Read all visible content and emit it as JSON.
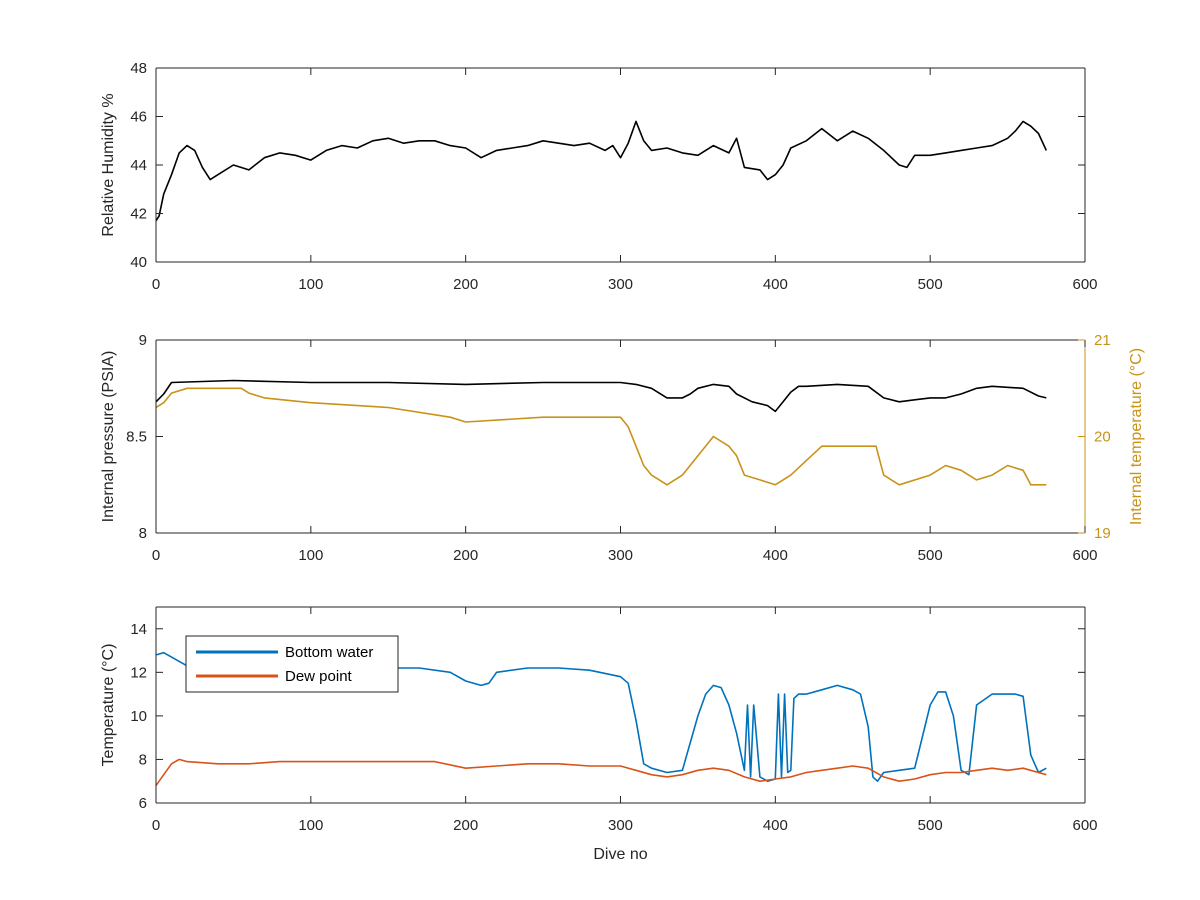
{
  "colors": {
    "axis": "#262626",
    "black_series": "#000000",
    "bottom_water": "#0072BD",
    "dew_point": "#D95319",
    "internal_temperature": "#C89318"
  },
  "chart_data": [
    {
      "type": "line",
      "xlabel": "",
      "ylabel": "Relative Humidity %",
      "xlim": [
        0,
        600
      ],
      "ylim": [
        40,
        48
      ],
      "x_ticks": [
        "0",
        "100",
        "200",
        "300",
        "400",
        "500",
        "600"
      ],
      "y_ticks": [
        "40",
        "42",
        "44",
        "46",
        "48"
      ],
      "grid": false,
      "series": [
        {
          "color": "#000000",
          "x": [
            0,
            2,
            5,
            10,
            15,
            20,
            25,
            30,
            35,
            40,
            50,
            60,
            70,
            80,
            90,
            100,
            110,
            120,
            130,
            140,
            150,
            160,
            170,
            180,
            190,
            200,
            210,
            220,
            230,
            240,
            250,
            260,
            270,
            280,
            290,
            295,
            300,
            305,
            310,
            315,
            320,
            330,
            340,
            350,
            360,
            370,
            375,
            380,
            390,
            395,
            400,
            405,
            410,
            420,
            430,
            440,
            450,
            460,
            470,
            480,
            485,
            490,
            500,
            510,
            520,
            530,
            540,
            550,
            555,
            560,
            565,
            570,
            575
          ],
          "y": [
            41.7,
            41.9,
            42.8,
            43.6,
            44.5,
            44.8,
            44.6,
            43.9,
            43.4,
            43.6,
            44.0,
            43.8,
            44.3,
            44.5,
            44.4,
            44.2,
            44.6,
            44.8,
            44.7,
            45.0,
            45.1,
            44.9,
            45.0,
            45.0,
            44.8,
            44.7,
            44.3,
            44.6,
            44.7,
            44.8,
            45.0,
            44.9,
            44.8,
            44.9,
            44.6,
            44.8,
            44.3,
            44.9,
            45.8,
            45.0,
            44.6,
            44.7,
            44.5,
            44.4,
            44.8,
            44.5,
            45.1,
            43.9,
            43.8,
            43.4,
            43.6,
            44.0,
            44.7,
            45.0,
            45.5,
            45.0,
            45.4,
            45.1,
            44.6,
            44.0,
            43.9,
            44.4,
            44.4,
            44.5,
            44.6,
            44.7,
            44.8,
            45.1,
            45.4,
            45.8,
            45.6,
            45.3,
            44.6
          ]
        }
      ]
    },
    {
      "type": "line",
      "xlabel": "",
      "ylabel": "Internal pressure (PSIA)",
      "y2label": "Internal temperature (°C)",
      "xlim": [
        0,
        600
      ],
      "ylim": [
        8,
        9
      ],
      "y2lim": [
        19,
        21
      ],
      "x_ticks": [
        "0",
        "100",
        "200",
        "300",
        "400",
        "500",
        "600"
      ],
      "y_ticks": [
        "8",
        "8.5",
        "9"
      ],
      "y2_ticks": [
        "19",
        "20",
        "21"
      ],
      "grid": false,
      "series": [
        {
          "axis": "left",
          "color": "#000000",
          "x": [
            0,
            5,
            10,
            50,
            100,
            150,
            200,
            250,
            300,
            310,
            320,
            330,
            340,
            345,
            350,
            360,
            370,
            375,
            385,
            395,
            400,
            405,
            410,
            415,
            420,
            440,
            460,
            470,
            480,
            490,
            500,
            510,
            520,
            530,
            540,
            560,
            570,
            575
          ],
          "y": [
            8.68,
            8.72,
            8.78,
            8.79,
            8.78,
            8.78,
            8.77,
            8.78,
            8.78,
            8.77,
            8.75,
            8.7,
            8.7,
            8.72,
            8.75,
            8.77,
            8.76,
            8.72,
            8.68,
            8.66,
            8.63,
            8.68,
            8.73,
            8.76,
            8.76,
            8.77,
            8.76,
            8.7,
            8.68,
            8.69,
            8.7,
            8.7,
            8.72,
            8.75,
            8.76,
            8.75,
            8.71,
            8.7
          ]
        },
        {
          "axis": "right",
          "color": "#C89318",
          "x": [
            0,
            5,
            10,
            20,
            40,
            55,
            60,
            70,
            100,
            150,
            190,
            200,
            250,
            290,
            300,
            305,
            310,
            315,
            320,
            330,
            340,
            350,
            360,
            370,
            375,
            380,
            390,
            400,
            410,
            420,
            430,
            440,
            450,
            465,
            470,
            480,
            500,
            510,
            520,
            530,
            540,
            550,
            560,
            565,
            570,
            575
          ],
          "y": [
            20.3,
            20.35,
            20.45,
            20.5,
            20.5,
            20.5,
            20.45,
            20.4,
            20.35,
            20.3,
            20.2,
            20.15,
            20.2,
            20.2,
            20.2,
            20.1,
            19.9,
            19.7,
            19.6,
            19.5,
            19.6,
            19.8,
            20.0,
            19.9,
            19.8,
            19.6,
            19.55,
            19.5,
            19.6,
            19.75,
            19.9,
            19.9,
            19.9,
            19.9,
            19.6,
            19.5,
            19.6,
            19.7,
            19.65,
            19.55,
            19.6,
            19.7,
            19.65,
            19.5,
            19.5,
            19.5
          ]
        }
      ]
    },
    {
      "type": "line",
      "xlabel": "Dive no",
      "ylabel": "Temperature (°C)",
      "xlim": [
        0,
        600
      ],
      "ylim": [
        6,
        15
      ],
      "x_ticks": [
        "0",
        "100",
        "200",
        "300",
        "400",
        "500",
        "600"
      ],
      "y_ticks": [
        "6",
        "8",
        "10",
        "12",
        "14"
      ],
      "grid": false,
      "legend_position": "top-left",
      "series": [
        {
          "name": "Bottom water",
          "color": "#0072BD",
          "x": [
            0,
            5,
            10,
            20,
            30,
            50,
            80,
            100,
            120,
            150,
            170,
            190,
            200,
            210,
            215,
            220,
            240,
            260,
            280,
            300,
            305,
            310,
            315,
            320,
            330,
            340,
            350,
            355,
            360,
            365,
            370,
            375,
            380,
            382,
            384,
            386,
            390,
            395,
            400,
            402,
            404,
            406,
            408,
            410,
            412,
            415,
            420,
            430,
            440,
            450,
            455,
            460,
            463,
            466,
            470,
            480,
            490,
            500,
            505,
            510,
            515,
            520,
            525,
            530,
            540,
            550,
            555,
            560,
            565,
            570,
            575
          ],
          "y": [
            12.8,
            12.9,
            12.7,
            12.3,
            12.3,
            12.2,
            12.1,
            12.2,
            12.2,
            12.2,
            12.2,
            12.0,
            11.6,
            11.4,
            11.5,
            12.0,
            12.2,
            12.2,
            12.1,
            11.8,
            11.5,
            9.8,
            7.8,
            7.6,
            7.4,
            7.5,
            10.0,
            11.0,
            11.4,
            11.3,
            10.5,
            9.2,
            7.5,
            10.5,
            7.2,
            10.5,
            7.2,
            7.0,
            7.1,
            11.0,
            7.2,
            11.0,
            7.4,
            7.5,
            10.8,
            11.0,
            11.0,
            11.2,
            11.4,
            11.2,
            11.0,
            9.5,
            7.2,
            7.0,
            7.4,
            7.5,
            7.6,
            10.5,
            11.1,
            11.1,
            10.0,
            7.5,
            7.3,
            10.5,
            11.0,
            11.0,
            11.0,
            10.9,
            8.2,
            7.4,
            7.6
          ]
        },
        {
          "name": "Dew point",
          "color": "#D95319",
          "x": [
            0,
            5,
            10,
            15,
            20,
            40,
            60,
            80,
            100,
            120,
            140,
            160,
            180,
            200,
            220,
            240,
            260,
            280,
            300,
            310,
            320,
            330,
            340,
            350,
            360,
            370,
            380,
            390,
            400,
            410,
            420,
            430,
            440,
            450,
            460,
            470,
            480,
            490,
            500,
            510,
            520,
            530,
            540,
            550,
            560,
            570,
            575
          ],
          "y": [
            6.8,
            7.3,
            7.8,
            8.0,
            7.9,
            7.8,
            7.8,
            7.9,
            7.9,
            7.9,
            7.9,
            7.9,
            7.9,
            7.6,
            7.7,
            7.8,
            7.8,
            7.7,
            7.7,
            7.5,
            7.3,
            7.2,
            7.3,
            7.5,
            7.6,
            7.5,
            7.2,
            7.0,
            7.1,
            7.2,
            7.4,
            7.5,
            7.6,
            7.7,
            7.6,
            7.2,
            7.0,
            7.1,
            7.3,
            7.4,
            7.4,
            7.5,
            7.6,
            7.5,
            7.6,
            7.4,
            7.3
          ]
        }
      ]
    }
  ]
}
